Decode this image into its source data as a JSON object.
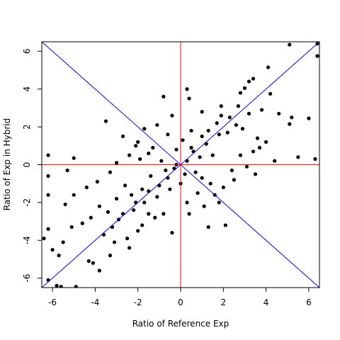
{
  "chart_data": {
    "type": "scatter",
    "title": "",
    "xlabel": "Ratio of Reference Exp",
    "ylabel": "Ratio of Exp in Hybrid",
    "xlim": [
      -6.5,
      6.5
    ],
    "ylim": [
      -6.5,
      6.5
    ],
    "xticks": [
      -6,
      -4,
      -2,
      0,
      2,
      4,
      6
    ],
    "yticks": [
      -6,
      -4,
      -2,
      0,
      2,
      4,
      6
    ],
    "xtick_labels": [
      "-6",
      "-4",
      "-2",
      "0",
      "2",
      "4",
      "6"
    ],
    "ytick_labels": [
      "-6",
      "-4",
      "-2",
      "0",
      "2",
      "4",
      "6"
    ],
    "grid": false,
    "legend": "none",
    "point_color": "#000000",
    "series": [
      {
        "points": [
          [
            5.1,
            6.35
          ],
          [
            6.4,
            6.4
          ],
          [
            4.1,
            5.15
          ],
          [
            6.4,
            5.75
          ],
          [
            3.4,
            4.55
          ],
          [
            3.2,
            4.4
          ],
          [
            3.0,
            4.05
          ],
          [
            4.2,
            3.75
          ],
          [
            -0.8,
            3.6
          ],
          [
            2.8,
            3.8
          ],
          [
            5.2,
            2.5
          ],
          [
            6.0,
            2.45
          ],
          [
            5.1,
            2.15
          ],
          [
            4.6,
            2.7
          ],
          [
            3.8,
            2.9
          ],
          [
            -2.7,
            1.5
          ],
          [
            -2.0,
            1.2
          ],
          [
            -3.5,
            2.3
          ],
          [
            -2.1,
            1.0
          ],
          [
            -1.5,
            0.6
          ],
          [
            -5.0,
            0.35
          ],
          [
            -6.2,
            0.5
          ],
          [
            -6.2,
            -0.6
          ],
          [
            -5.3,
            -0.3
          ],
          [
            -6.2,
            -1.6
          ],
          [
            -5.0,
            -1.6
          ],
          [
            -5.4,
            -2.1
          ],
          [
            -6.2,
            -3.4
          ],
          [
            -6.4,
            -3.9
          ],
          [
            -5.5,
            -4.1
          ],
          [
            -5.1,
            -3.3
          ],
          [
            -6.0,
            -4.5
          ],
          [
            -5.7,
            -4.8
          ],
          [
            -6.2,
            -6.1
          ],
          [
            -5.8,
            -6.4
          ],
          [
            -5.6,
            -6.45
          ],
          [
            -4.9,
            -6.45
          ],
          [
            -4.3,
            -5.1
          ],
          [
            -3.8,
            -5.6
          ],
          [
            -4.1,
            -5.2
          ],
          [
            -3.1,
            -4.1
          ],
          [
            -2.5,
            -3.9
          ],
          [
            -2.0,
            -3.5
          ],
          [
            -1.5,
            -2.6
          ],
          [
            -0.8,
            -2.6
          ],
          [
            -0.4,
            -3.6
          ],
          [
            0.4,
            -2.6
          ],
          [
            1.3,
            -3.3
          ],
          [
            2.1,
            -3.2
          ],
          [
            1.8,
            -2.0
          ],
          [
            2.5,
            -0.8
          ],
          [
            3.5,
            -0.5
          ],
          [
            3.7,
            0.9
          ],
          [
            4.4,
            0.2
          ],
          [
            5.5,
            0.4
          ],
          [
            6.3,
            0.3
          ],
          [
            2.2,
            1.7
          ],
          [
            1.8,
            1.6
          ],
          [
            1.2,
            1.1
          ],
          [
            0.6,
            0.7
          ],
          [
            0.3,
            0.2
          ],
          [
            0.9,
            0.4
          ],
          [
            1.5,
            0.5
          ],
          [
            1.0,
            1.5
          ],
          [
            1.7,
            2.2
          ],
          [
            0.5,
            1.8
          ],
          [
            -0.4,
            2.6
          ],
          [
            0.3,
            4.0
          ],
          [
            0.4,
            3.5
          ],
          [
            1.0,
            2.8
          ],
          [
            1.9,
            3.1
          ],
          [
            2.3,
            2.5
          ],
          [
            2.6,
            2.1
          ],
          [
            2.9,
            1.9
          ],
          [
            3.2,
            2.7
          ],
          [
            2.7,
            3.1
          ],
          [
            3.6,
            1.4
          ],
          [
            4.0,
            1.2
          ],
          [
            3.4,
            0.7
          ],
          [
            2.8,
            0.5
          ],
          [
            3.1,
            -0.1
          ],
          [
            2.4,
            -0.3
          ],
          [
            2.0,
            -1.2
          ],
          [
            1.4,
            -1.0
          ],
          [
            1.0,
            -0.7
          ],
          [
            0.7,
            -0.4
          ],
          [
            0.2,
            -0.5
          ],
          [
            -0.3,
            -0.2
          ],
          [
            -0.6,
            -0.7
          ],
          [
            -1.0,
            -1.1
          ],
          [
            -1.4,
            -0.6
          ],
          [
            -1.8,
            -1.3
          ],
          [
            -2.3,
            -1.6
          ],
          [
            -2.6,
            -1.1
          ],
          [
            -3.0,
            -1.8
          ],
          [
            -3.4,
            -2.5
          ],
          [
            -3.8,
            -2.2
          ],
          [
            -4.2,
            -2.8
          ],
          [
            -4.6,
            -3.1
          ],
          [
            -2.9,
            -2.9
          ],
          [
            -2.2,
            -2.4
          ],
          [
            -1.7,
            -2.0
          ],
          [
            -1.1,
            -1.7
          ],
          [
            -0.5,
            -1.3
          ],
          [
            0.0,
            -1.0
          ],
          [
            -1.9,
            0.3
          ],
          [
            -2.4,
            0.5
          ],
          [
            -3.0,
            0.1
          ],
          [
            -3.3,
            -0.4
          ],
          [
            -3.9,
            -0.9
          ],
          [
            -4.4,
            -1.2
          ],
          [
            -0.9,
            0.2
          ],
          [
            -1.3,
            0.9
          ],
          [
            -0.2,
            0.8
          ],
          [
            0.1,
            1.3
          ],
          [
            -0.6,
            1.6
          ],
          [
            -1.1,
            2.1
          ],
          [
            -1.7,
            1.9
          ],
          [
            0.8,
            -1.5
          ],
          [
            0.3,
            -2.0
          ],
          [
            1.1,
            -2.2
          ],
          [
            1.6,
            -1.6
          ],
          [
            -1.2,
            -2.8
          ],
          [
            -1.8,
            -3.2
          ],
          [
            -2.4,
            -4.4
          ],
          [
            -3.3,
            -4.8
          ],
          [
            -0.2,
            0.0
          ],
          [
            0.5,
            0.9
          ],
          [
            1.3,
            1.8
          ],
          [
            1.9,
            2.6
          ],
          [
            -0.7,
            -0.3
          ],
          [
            -1.5,
            -1.4
          ],
          [
            -2.1,
            -2.0
          ],
          [
            -2.7,
            -2.6
          ],
          [
            -3.2,
            -3.3
          ],
          [
            -3.6,
            -3.7
          ]
        ]
      }
    ],
    "reference_lines": [
      {
        "type": "identity",
        "slope": 1,
        "intercept": 0,
        "color": "#0000ff"
      },
      {
        "type": "anti-diagonal",
        "slope": -1,
        "intercept": 0,
        "color": "#0000ff"
      },
      {
        "type": "horizontal",
        "y": 0,
        "color": "#ff0000"
      },
      {
        "type": "vertical",
        "x": 0,
        "color": "#ff0000"
      }
    ]
  }
}
